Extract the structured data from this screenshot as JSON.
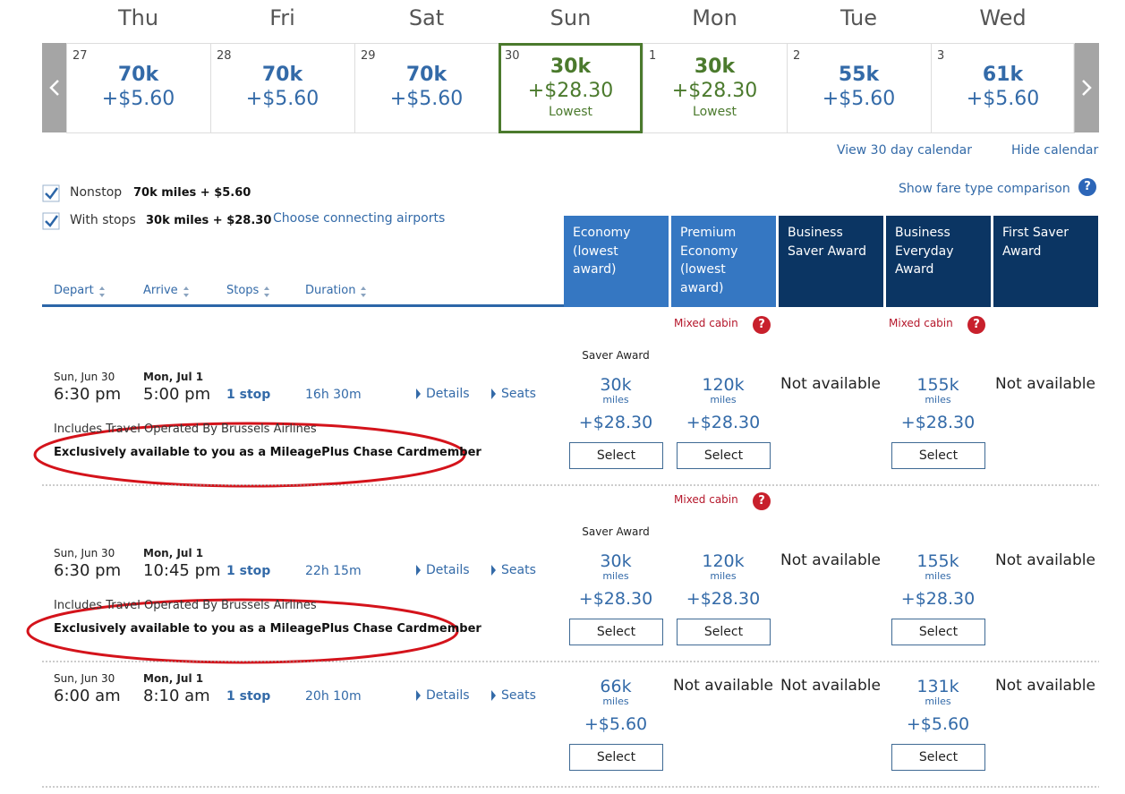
{
  "calendar": {
    "days": [
      {
        "weekday": "Thu",
        "date": "27",
        "miles": "70k",
        "fee": "+$5.60"
      },
      {
        "weekday": "Fri",
        "date": "28",
        "miles": "70k",
        "fee": "+$5.60"
      },
      {
        "weekday": "Sat",
        "date": "29",
        "miles": "70k",
        "fee": "+$5.60"
      },
      {
        "weekday": "Sun",
        "date": "30",
        "miles": "30k",
        "fee": "+$28.30",
        "note": "Lowest",
        "selected": true
      },
      {
        "weekday": "Mon",
        "date": "1",
        "miles": "30k",
        "fee": "+$28.30",
        "note": "Lowest"
      },
      {
        "weekday": "Tue",
        "date": "2",
        "miles": "55k",
        "fee": "+$5.60"
      },
      {
        "weekday": "Wed",
        "date": "3",
        "miles": "61k",
        "fee": "+$5.60"
      }
    ],
    "view_link": "View 30 day calendar",
    "hide_link": "Hide calendar"
  },
  "filters": [
    {
      "label": "Nonstop",
      "price": "70k miles + $5.60",
      "checked": true
    },
    {
      "label": "With stops",
      "price": "30k miles + $28.30",
      "checked": true,
      "link": "Choose connecting airports"
    }
  ],
  "fare_comparison_link": "Show fare type comparison",
  "help_icon": "?",
  "sort_columns": [
    "Depart",
    "Arrive",
    "Stops",
    "Duration"
  ],
  "fare_columns": [
    {
      "label": "Economy (lowest award)",
      "style": "light",
      "sorted": true
    },
    {
      "label": "Premium Economy (lowest award)",
      "style": "light",
      "sorted": false
    },
    {
      "label": "Business Saver Award",
      "style": "dark",
      "sorted": false
    },
    {
      "label": "Business Everyday Award",
      "style": "dark",
      "sorted": false
    },
    {
      "label": "First Saver Award",
      "style": "dark",
      "sorted": false
    }
  ],
  "flights": [
    {
      "depart_date": "Sun, Jun 30",
      "depart_time": "6:30 pm",
      "arrive_date": "Mon, Jul 1",
      "arrive_time": "5:00 pm",
      "stops": "1 stop",
      "duration": "16h 30m",
      "details": "Details",
      "seats": "Seats",
      "operated_by": "Includes Travel Operated By Brussels Airlines",
      "exclusive": "Exclusively available to you as a MileagePlus Chase Cardmember",
      "highlighted": true,
      "fares": [
        {
          "award": "Saver Award",
          "miles": "30k",
          "unit": "miles",
          "fee": "+$28.30",
          "action": "Select"
        },
        {
          "mixed_cabin": "Mixed cabin",
          "miles": "120k",
          "unit": "miles",
          "fee": "+$28.30",
          "action": "Select"
        },
        {
          "status": "Not available"
        },
        {
          "mixed_cabin": "Mixed cabin",
          "miles": "155k",
          "unit": "miles",
          "fee": "+$28.30",
          "action": "Select"
        },
        {
          "status": "Not available"
        }
      ]
    },
    {
      "depart_date": "Sun, Jun 30",
      "depart_time": "6:30 pm",
      "arrive_date": "Mon, Jul 1",
      "arrive_time": "10:45 pm",
      "stops": "1 stop",
      "duration": "22h 15m",
      "details": "Details",
      "seats": "Seats",
      "operated_by": "Includes Travel Operated By Brussels Airlines",
      "exclusive": "Exclusively available to you as a MileagePlus Chase Cardmember",
      "highlighted": true,
      "fares": [
        {
          "award": "Saver Award",
          "miles": "30k",
          "unit": "miles",
          "fee": "+$28.30",
          "action": "Select"
        },
        {
          "mixed_cabin": "Mixed cabin",
          "miles": "120k",
          "unit": "miles",
          "fee": "+$28.30",
          "action": "Select"
        },
        {
          "status": "Not available"
        },
        {
          "miles": "155k",
          "unit": "miles",
          "fee": "+$28.30",
          "action": "Select"
        },
        {
          "status": "Not available"
        }
      ]
    },
    {
      "depart_date": "Sun, Jun 30",
      "depart_time": "6:00 am",
      "arrive_date": "Mon, Jul 1",
      "arrive_time": "8:10 am",
      "stops": "1 stop",
      "duration": "20h 10m",
      "details": "Details",
      "seats": "Seats",
      "fares": [
        {
          "miles": "66k",
          "unit": "miles",
          "fee": "+$5.60",
          "action": "Select"
        },
        {
          "status": "Not available"
        },
        {
          "status": "Not available"
        },
        {
          "miles": "131k",
          "unit": "miles",
          "fee": "+$5.60",
          "action": "Select"
        },
        {
          "status": "Not available"
        }
      ]
    }
  ]
}
